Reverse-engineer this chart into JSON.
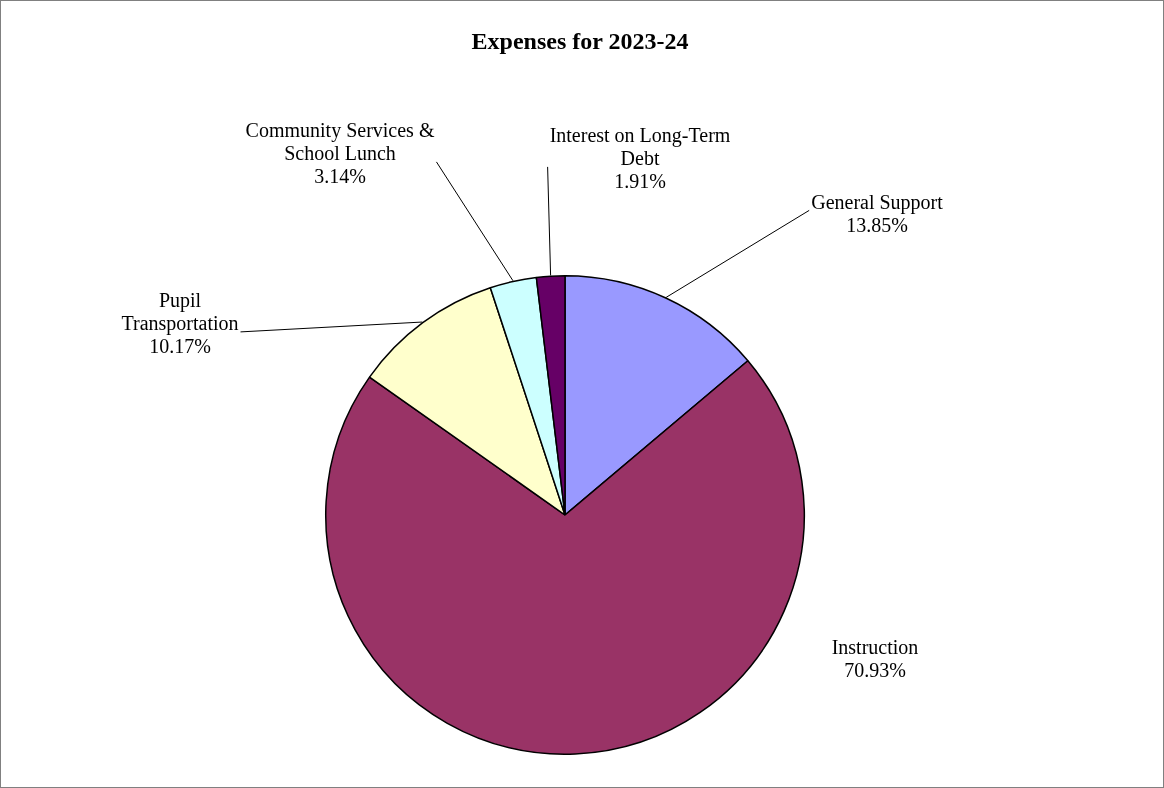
{
  "chart_data": {
    "type": "pie",
    "title": "Expenses for 2023-24",
    "categories": [
      "General Support",
      "Instruction",
      "Pupil Transportation",
      "Community Services & School Lunch",
      "Interest on Long-Term Debt"
    ],
    "values": [
      13.85,
      70.93,
      10.17,
      3.14,
      1.91
    ],
    "value_labels": [
      "13.85%",
      "70.93%",
      "10.17%",
      "3.14%",
      "1.91%"
    ],
    "colors": [
      "#9999ff",
      "#993366",
      "#ffffcc",
      "#ccffff",
      "#660066"
    ],
    "legend": false
  }
}
